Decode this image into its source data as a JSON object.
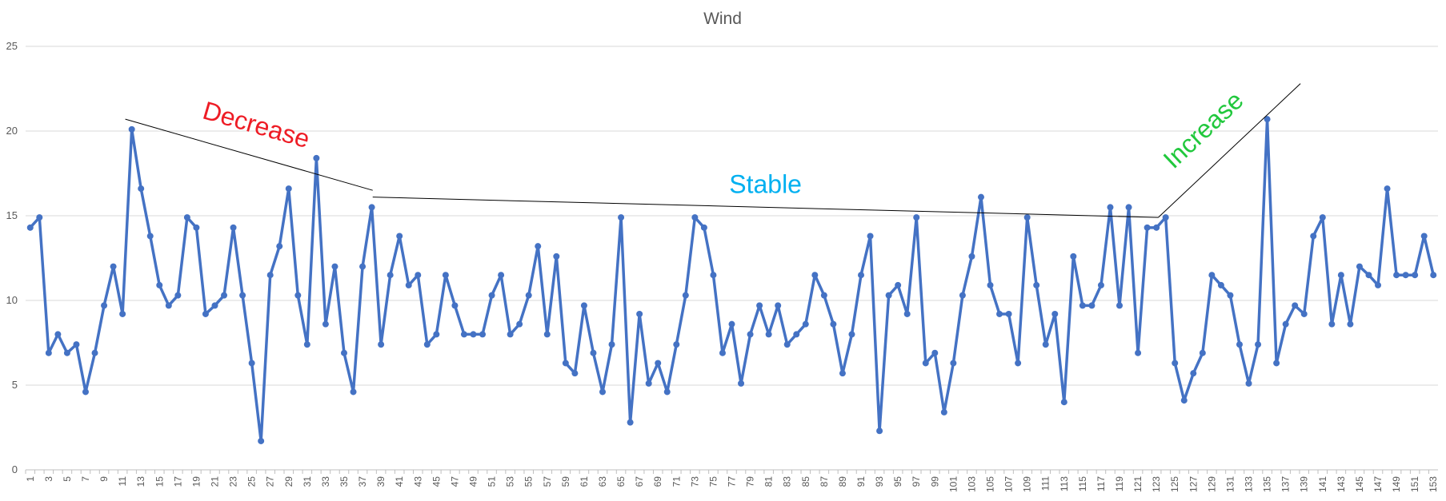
{
  "chart_data": {
    "type": "line",
    "title": "Wind",
    "xlabel": "",
    "ylabel": "",
    "ylim": [
      0,
      25
    ],
    "yticks": [
      "0",
      "5",
      "10",
      "15",
      "20",
      "25"
    ],
    "xtick_step": 2,
    "grid": true,
    "legend": "none",
    "x": [
      1,
      2,
      3,
      4,
      5,
      6,
      7,
      8,
      9,
      10,
      11,
      12,
      13,
      14,
      15,
      16,
      17,
      18,
      19,
      20,
      21,
      22,
      23,
      24,
      25,
      26,
      27,
      28,
      29,
      30,
      31,
      32,
      33,
      34,
      35,
      36,
      37,
      38,
      39,
      40,
      41,
      42,
      43,
      44,
      45,
      46,
      47,
      48,
      49,
      50,
      51,
      52,
      53,
      54,
      55,
      56,
      57,
      58,
      59,
      60,
      61,
      62,
      63,
      64,
      65,
      66,
      67,
      68,
      69,
      70,
      71,
      72,
      73,
      74,
      75,
      76,
      77,
      78,
      79,
      80,
      81,
      82,
      83,
      84,
      85,
      86,
      87,
      88,
      89,
      90,
      91,
      92,
      93,
      94,
      95,
      96,
      97,
      98,
      99,
      100,
      101,
      102,
      103,
      104,
      105,
      106,
      107,
      108,
      109,
      110,
      111,
      112,
      113,
      114,
      115,
      116,
      117,
      118,
      119,
      120,
      121,
      122,
      123,
      124,
      125,
      126,
      127,
      128,
      129,
      130,
      131,
      132,
      133,
      134,
      135,
      136,
      137,
      138,
      139,
      140,
      141,
      142,
      143,
      144,
      145,
      146,
      147,
      148,
      149,
      150,
      151,
      152,
      153
    ],
    "series": [
      {
        "color": "#4472c4",
        "values": [
          14.3,
          14.9,
          6.9,
          8.0,
          6.9,
          7.4,
          4.6,
          6.9,
          9.7,
          12.0,
          9.2,
          20.1,
          16.6,
          13.8,
          10.9,
          9.7,
          10.3,
          14.9,
          14.3,
          9.2,
          9.7,
          10.3,
          14.3,
          10.3,
          6.3,
          1.7,
          11.5,
          13.2,
          16.6,
          10.3,
          7.4,
          18.4,
          8.6,
          12.0,
          6.9,
          4.6,
          12.0,
          15.5,
          7.4,
          11.5,
          13.8,
          10.9,
          11.5,
          7.4,
          8.0,
          11.5,
          9.7,
          8.0,
          8.0,
          8.0,
          10.3,
          11.5,
          8.0,
          8.6,
          10.3,
          13.2,
          8.0,
          12.6,
          6.3,
          5.7,
          9.7,
          6.9,
          4.6,
          7.4,
          14.9,
          2.8,
          9.2,
          5.1,
          6.3,
          4.6,
          7.4,
          10.3,
          14.9,
          14.3,
          11.5,
          6.9,
          8.6,
          5.1,
          8.0,
          9.7,
          8.0,
          9.7,
          7.4,
          8.0,
          8.6,
          11.5,
          10.3,
          8.6,
          5.7,
          8.0,
          11.5,
          13.8,
          2.3,
          10.3,
          10.9,
          9.2,
          14.9,
          6.3,
          6.9,
          3.4,
          6.3,
          10.3,
          12.6,
          16.1,
          10.9,
          9.2,
          9.2,
          6.3,
          14.9,
          10.9,
          7.4,
          9.2,
          4.0,
          12.6,
          9.7,
          9.7,
          10.9,
          15.5,
          9.7,
          15.5,
          6.9,
          14.3,
          14.3,
          14.9,
          6.3,
          4.1,
          5.7,
          6.9,
          11.5,
          10.9,
          10.3,
          7.4,
          5.1,
          7.4,
          20.7,
          6.3,
          8.6,
          9.7,
          9.2,
          13.8,
          14.9,
          8.6,
          11.5,
          8.6,
          12.0,
          11.5,
          10.9,
          16.6,
          11.5,
          11.5,
          11.5,
          13.8,
          11.5
        ]
      }
    ],
    "annotations": [
      {
        "text": "Decrease",
        "color": "#ee1c25",
        "from": [
          11.3,
          20.7
        ],
        "to": [
          38.1,
          16.5
        ]
      },
      {
        "text": "Stable",
        "color": "#00b0f0",
        "from": [
          38.1,
          16.1
        ],
        "to": [
          123.2,
          14.9
        ]
      },
      {
        "text": "Increase",
        "color": "#21c83d",
        "from": [
          123.2,
          14.9
        ],
        "to": [
          138.6,
          22.8
        ]
      }
    ]
  }
}
